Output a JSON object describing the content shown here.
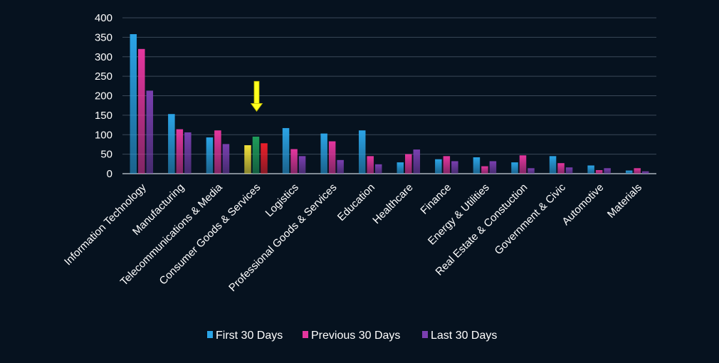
{
  "chart_data": {
    "type": "bar",
    "title": "",
    "xlabel": "",
    "ylabel": "",
    "ylim": [
      0,
      400
    ],
    "yticks": [
      0,
      50,
      100,
      150,
      200,
      250,
      300,
      350,
      400
    ],
    "grid": true,
    "legend_position": "bottom",
    "categories": [
      "Information Technology",
      "Manufacturing",
      "Telecommunications & Media",
      "Consumer Goods &  Services",
      "Logistics",
      "Professional Goods & Services",
      "Education",
      "Healthcare",
      "Finance",
      "Energy & Utilities",
      "Real Estate & Constuction",
      "Government & Civic",
      "Automotive",
      "Materials"
    ],
    "series": [
      {
        "name": "First 30 Days",
        "color": "#2ba4e6",
        "values": [
          358,
          153,
          93,
          73,
          117,
          103,
          111,
          29,
          37,
          42,
          29,
          45,
          21,
          8
        ]
      },
      {
        "name": "Previous 30 Days",
        "color": "#e5369e",
        "values": [
          320,
          114,
          111,
          95,
          63,
          83,
          45,
          50,
          45,
          19,
          47,
          27,
          9,
          14
        ]
      },
      {
        "name": "Last 30 Days",
        "color": "#7a3fb0",
        "values": [
          213,
          106,
          76,
          78,
          45,
          35,
          24,
          62,
          32,
          32,
          14,
          16,
          14,
          6
        ]
      }
    ],
    "highlight": {
      "category": "Consumer Goods &  Services",
      "colors": [
        "#f2e13a",
        "#1f9d5a",
        "#ee1f2a"
      ],
      "arrow_color": "#ffff1e"
    },
    "colors": {
      "background": "#06121f",
      "grid": "#3a4858",
      "axis": "#c9d1db",
      "text": "#ffffff"
    }
  }
}
